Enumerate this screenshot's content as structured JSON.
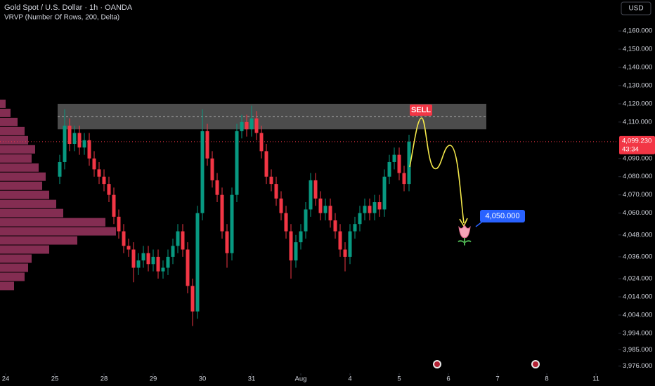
{
  "chart_data": {
    "type": "candlestick",
    "title": "Gold Spot / U.S. Dollar · 1h · OANDA",
    "subtitle": "VRVP (Number Of Rows, 200, Delta)",
    "currency": "USD",
    "up_color": "#089981",
    "down_color": "#f23645",
    "x": [
      1.1,
      1.2,
      1.3,
      1.4,
      1.5,
      1.6,
      1.7,
      1.8,
      1.9,
      2.0,
      2.1,
      2.2,
      2.3,
      2.4,
      2.5,
      2.6,
      2.7,
      2.8,
      2.9,
      3.0,
      3.1,
      3.2,
      3.3,
      3.4,
      3.5,
      3.6,
      3.7,
      3.8,
      3.9,
      4.0,
      4.1,
      4.2,
      4.3,
      4.4,
      4.5,
      4.6,
      4.7,
      4.8,
      4.9,
      5.0,
      5.1,
      5.2,
      5.3,
      5.4,
      5.5,
      5.6,
      5.7,
      5.8,
      5.9,
      6.0,
      6.1,
      6.2,
      6.3,
      6.4,
      6.5,
      6.6,
      6.7,
      6.8,
      6.9,
      7.0,
      7.1,
      7.2,
      7.3,
      7.4,
      7.5,
      7.6,
      7.7,
      7.8,
      7.9,
      8.0,
      8.1,
      8.2
    ],
    "open": [
      4080,
      4088,
      4108,
      4098,
      4104,
      4096,
      4100,
      4090,
      4084,
      4080,
      4076,
      4070,
      4058,
      4050,
      4042,
      4040,
      4030,
      4034,
      4038,
      4032,
      4036,
      4028,
      4030,
      4036,
      4042,
      4050,
      4040,
      4020,
      4006,
      4060,
      4105,
      4090,
      4078,
      4070,
      4050,
      4038,
      4070,
      4105,
      4110,
      4106,
      4112,
      4104,
      4094,
      4080,
      4076,
      4068,
      4060,
      4050,
      4034,
      4044,
      4050,
      4062,
      4078,
      4068,
      4060,
      4064,
      4056,
      4050,
      4040,
      4036,
      4050,
      4054,
      4060,
      4064,
      4060,
      4066,
      4062,
      4080,
      4088,
      4092,
      4082,
      4076
    ],
    "high": [
      4092,
      4117,
      4112,
      4108,
      4108,
      4104,
      4104,
      4094,
      4088,
      4084,
      4080,
      4074,
      4062,
      4054,
      4046,
      4044,
      4038,
      4042,
      4042,
      4040,
      4040,
      4034,
      4040,
      4046,
      4054,
      4054,
      4044,
      4024,
      4064,
      4117,
      4109,
      4094,
      4082,
      4074,
      4054,
      4074,
      4109,
      4114,
      4114,
      4119,
      4116,
      4108,
      4098,
      4084,
      4080,
      4072,
      4064,
      4054,
      4048,
      4054,
      4066,
      4082,
      4082,
      4072,
      4068,
      4068,
      4060,
      4054,
      4044,
      4054,
      4058,
      4064,
      4068,
      4068,
      4070,
      4070,
      4084,
      4092,
      4096,
      4096,
      4086,
      4103
    ],
    "low": [
      4076,
      4084,
      4094,
      4094,
      4092,
      4092,
      4086,
      4080,
      4076,
      4072,
      4066,
      4054,
      4046,
      4038,
      4036,
      4022,
      4026,
      4030,
      4028,
      4028,
      4024,
      4024,
      4026,
      4032,
      4038,
      4036,
      4016,
      3998,
      4002,
      4056,
      4086,
      4074,
      4066,
      4046,
      4030,
      4034,
      4066,
      4101,
      4102,
      4102,
      4100,
      4090,
      4076,
      4072,
      4064,
      4056,
      4046,
      4024,
      4030,
      4040,
      4046,
      4058,
      4064,
      4056,
      4056,
      4052,
      4046,
      4036,
      4028,
      4032,
      4046,
      4050,
      4056,
      4056,
      4056,
      4058,
      4058,
      4076,
      4084,
      4078,
      4072,
      4072
    ],
    "close": [
      4088,
      4108,
      4098,
      4104,
      4096,
      4100,
      4090,
      4084,
      4080,
      4076,
      4070,
      4058,
      4050,
      4042,
      4040,
      4030,
      4034,
      4038,
      4032,
      4036,
      4028,
      4030,
      4036,
      4042,
      4050,
      4040,
      4020,
      4006,
      4060,
      4105,
      4090,
      4078,
      4070,
      4050,
      4038,
      4070,
      4105,
      4110,
      4106,
      4112,
      4104,
      4094,
      4080,
      4076,
      4068,
      4060,
      4050,
      4034,
      4044,
      4050,
      4062,
      4078,
      4068,
      4060,
      4064,
      4056,
      4050,
      4040,
      4036,
      4050,
      4054,
      4060,
      4064,
      4060,
      4066,
      4062,
      4080,
      4088,
      4092,
      4082,
      4076,
      4099.23
    ],
    "xlim": [
      -0.1,
      12.45
    ],
    "xticks": [
      {
        "value": 0,
        "label": "24"
      },
      {
        "value": 1,
        "label": "25"
      },
      {
        "value": 2,
        "label": "28"
      },
      {
        "value": 3,
        "label": "29"
      },
      {
        "value": 4,
        "label": "30"
      },
      {
        "value": 5,
        "label": "31"
      },
      {
        "value": 6,
        "label": "Aug"
      },
      {
        "value": 7,
        "label": "4"
      },
      {
        "value": 8,
        "label": "5"
      },
      {
        "value": 9,
        "label": "6"
      },
      {
        "value": 10,
        "label": "7"
      },
      {
        "value": 11,
        "label": "8"
      },
      {
        "value": 12,
        "label": "11"
      }
    ],
    "ylim": [
      3972,
      4177
    ],
    "yticks": [
      {
        "value": 4160,
        "label": "4,160.000"
      },
      {
        "value": 4150,
        "label": "4,150.000"
      },
      {
        "value": 4140,
        "label": "4,140.000"
      },
      {
        "value": 4130,
        "label": "4,130.000"
      },
      {
        "value": 4120,
        "label": "4,120.000"
      },
      {
        "value": 4110,
        "label": "4,110.000"
      },
      {
        "value": 4090,
        "label": "4,090.000"
      },
      {
        "value": 4080,
        "label": "4,080.000"
      },
      {
        "value": 4070,
        "label": "4,070.000"
      },
      {
        "value": 4060,
        "label": "4,060.000"
      },
      {
        "value": 4048,
        "label": "4,048.000"
      },
      {
        "value": 4036,
        "label": "4,036.000"
      },
      {
        "value": 4024,
        "label": "4,024.000"
      },
      {
        "value": 4014,
        "label": "4,014.000"
      },
      {
        "value": 4004,
        "label": "4,004.000"
      },
      {
        "value": 3994,
        "label": "3,994.000"
      },
      {
        "value": 3985,
        "label": "3,985.000"
      },
      {
        "value": 3976,
        "label": "3,976.000"
      }
    ],
    "last_price": {
      "value": 4099.23,
      "label": "4,099.230"
    },
    "countdown": "43:34",
    "zone": [
      4106,
      4120
    ],
    "sell_label": "SELL",
    "target": {
      "value": 4050,
      "label": "4,050.000"
    },
    "profile": {
      "color": "#b03c6e",
      "prices": [
        4020,
        4025,
        4030,
        4035,
        4040,
        4045,
        4050,
        4055,
        4060,
        4065,
        4070,
        4075,
        4080,
        4085,
        4090,
        4095,
        4100,
        4105,
        4110,
        4115,
        4120
      ],
      "values": [
        20,
        35,
        40,
        45,
        70,
        110,
        165,
        150,
        90,
        80,
        70,
        60,
        65,
        55,
        45,
        50,
        40,
        35,
        25,
        15,
        8
      ]
    }
  }
}
